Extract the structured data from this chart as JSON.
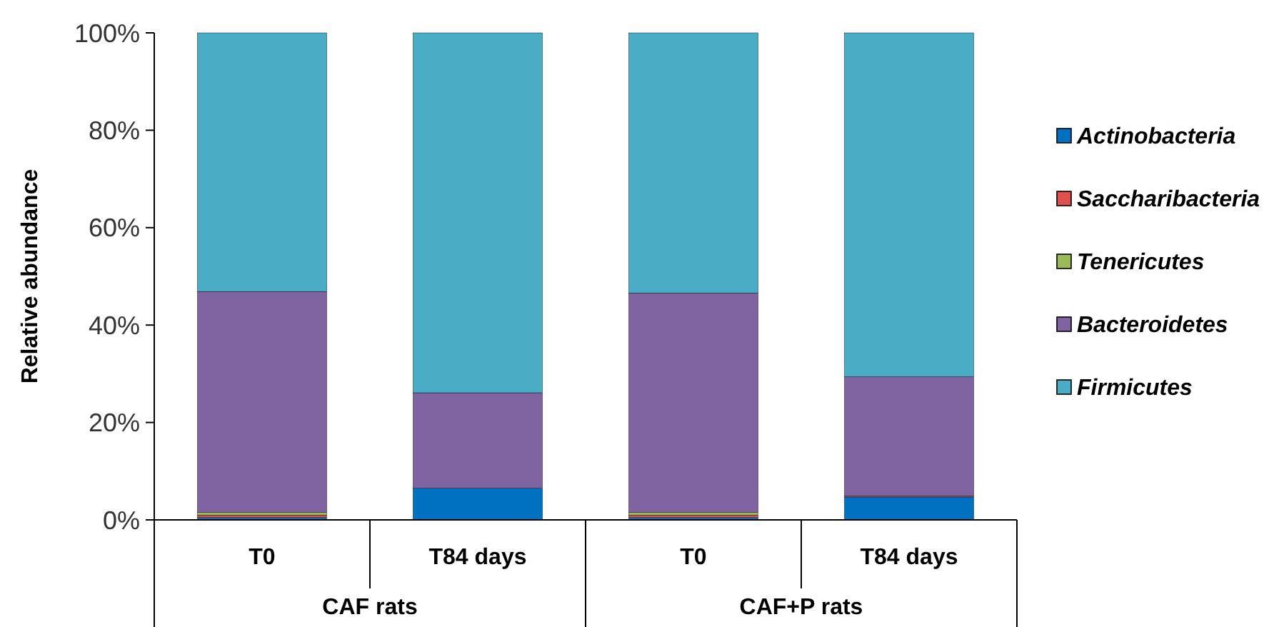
{
  "chart_data": {
    "type": "bar",
    "stacked": true,
    "ylabel": "Relative abundance",
    "categories": [
      "T0",
      "T84 days",
      "T0",
      "T84 days"
    ],
    "annotations": [
      "CAF rats",
      "CAF+P rats"
    ],
    "series": [
      {
        "name": "Actinobacteria",
        "color": "#0070c0",
        "values": [
          0.5,
          6.5,
          0.5,
          4.7
        ]
      },
      {
        "name": "Saccharibacteria",
        "color": "#e0504f",
        "values": [
          0.5,
          0,
          0.5,
          0.2
        ]
      },
      {
        "name": "Tenericutes",
        "color": "#9bbb59",
        "values": [
          0.5,
          0,
          0.5,
          0
        ]
      },
      {
        "name": "Bacteroidetes",
        "color": "#8064a2",
        "values": [
          45.4,
          19.6,
          45.1,
          24.5
        ]
      },
      {
        "name": "Firmicutes",
        "color": "#4bacc6",
        "values": [
          53.1,
          73.9,
          53.4,
          70.6
        ]
      }
    ],
    "ylim": [
      0,
      100
    ],
    "yticks": [
      {
        "value": 0,
        "label": "0%"
      },
      {
        "value": 20,
        "label": "20%"
      },
      {
        "value": 40,
        "label": "40%"
      },
      {
        "value": 60,
        "label": "60%"
      },
      {
        "value": 80,
        "label": "80%"
      },
      {
        "value": 100,
        "label": "100%"
      }
    ],
    "grid": false,
    "legend": "right"
  }
}
